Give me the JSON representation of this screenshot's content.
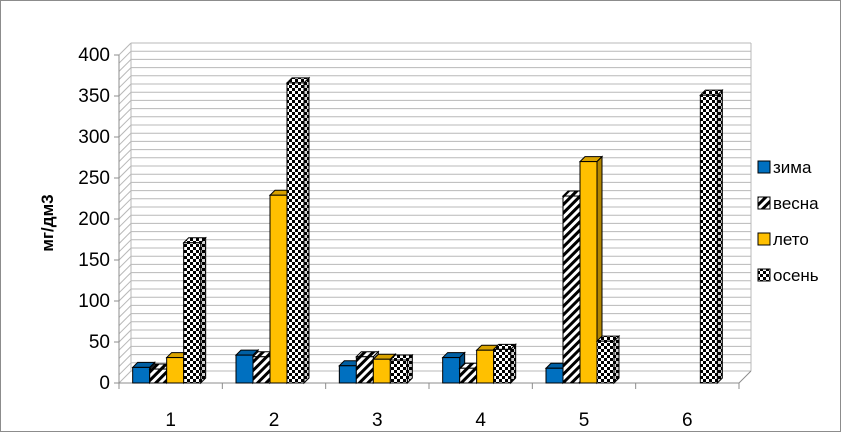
{
  "chart_data": {
    "type": "bar",
    "title": "",
    "xlabel": "",
    "ylabel": "мг/дм3",
    "ylim": [
      0,
      400
    ],
    "yticks": [
      0,
      50,
      100,
      150,
      200,
      250,
      300,
      350,
      400
    ],
    "categories": [
      "1",
      "2",
      "3",
      "4",
      "5",
      "6"
    ],
    "grid": true,
    "legend_position": "right",
    "series": [
      {
        "name": "зима",
        "values": [
          19,
          34,
          21,
          31,
          18,
          0
        ],
        "color": "#0070c0",
        "pattern": "solid"
      },
      {
        "name": "весна",
        "values": [
          17,
          32,
          32,
          18,
          228,
          0
        ],
        "color": "#ffffff",
        "pattern": "diagonal-stripes"
      },
      {
        "name": "лето",
        "values": [
          31,
          229,
          29,
          40,
          270,
          0
        ],
        "color": "#ffc000",
        "pattern": "solid"
      },
      {
        "name": "осень",
        "values": [
          171,
          366,
          28,
          41,
          51,
          351
        ],
        "color": "#ffffff",
        "pattern": "checkerboard"
      }
    ]
  }
}
